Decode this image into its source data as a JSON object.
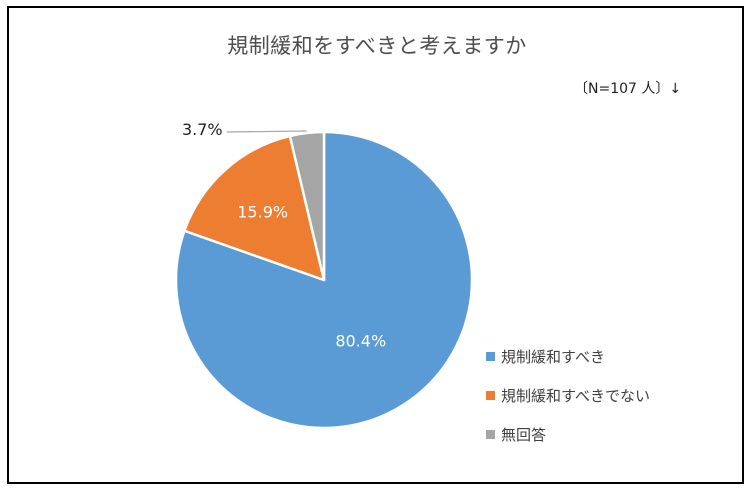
{
  "chart_data": {
    "type": "pie",
    "title": "規制緩和をすべきと考えますか",
    "note": "〔N=107 人〕↓",
    "slices": [
      {
        "label": "規制緩和すべき",
        "value": 80.4,
        "value_label": "80.4%",
        "color": "#5b9bd5"
      },
      {
        "label": "規制緩和すべきでない",
        "value": 15.9,
        "value_label": "15.9%",
        "color": "#ed7d31"
      },
      {
        "label": "無回答",
        "value": 3.7,
        "value_label": "3.7%",
        "color": "#a5a5a5"
      }
    ],
    "legend_position": "right"
  }
}
